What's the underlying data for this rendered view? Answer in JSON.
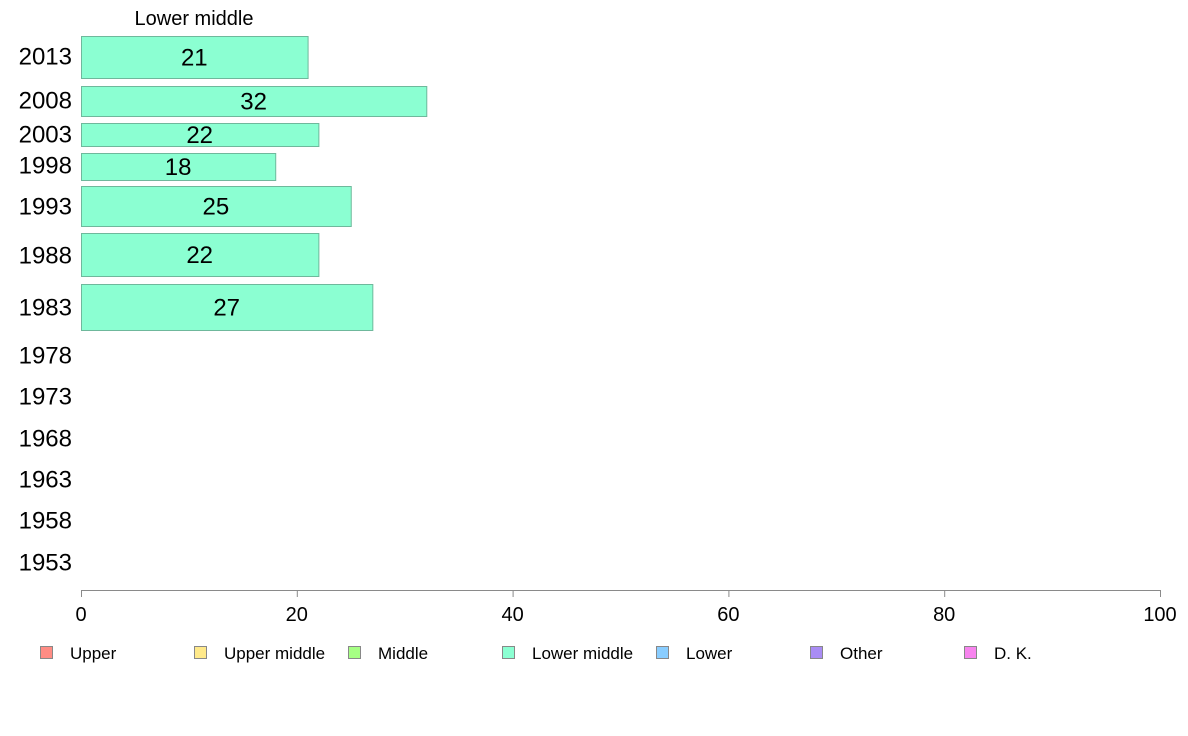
{
  "chart_data": {
    "type": "bar",
    "orientation": "horizontal",
    "title": "Lower middle",
    "xlabel": "",
    "ylabel": "",
    "xlim": [
      0,
      100
    ],
    "xticks": [
      0,
      20,
      40,
      60,
      80,
      100
    ],
    "categories": [
      "2013",
      "2008",
      "2003",
      "1998",
      "1993",
      "1988",
      "1983",
      "1978",
      "1973",
      "1968",
      "1963",
      "1958",
      "1953"
    ],
    "series": [
      {
        "name": "Lower middle",
        "color": "#8bffd2",
        "values": [
          21,
          32,
          22,
          18,
          25,
          22,
          27,
          null,
          null,
          null,
          null,
          null,
          null
        ]
      }
    ],
    "grid": false,
    "legend_position": "bottom",
    "legend": [
      {
        "label": "Upper",
        "color": "#ff8c84"
      },
      {
        "label": "Upper middle",
        "color": "#ffe98a"
      },
      {
        "label": "Middle",
        "color": "#a6ff84"
      },
      {
        "label": "Lower middle",
        "color": "#8bffd2"
      },
      {
        "label": "Lower",
        "color": "#89cdff"
      },
      {
        "label": "Other",
        "color": "#a98cf4"
      },
      {
        "label": "D. K.",
        "color": "#f784ee"
      }
    ]
  }
}
